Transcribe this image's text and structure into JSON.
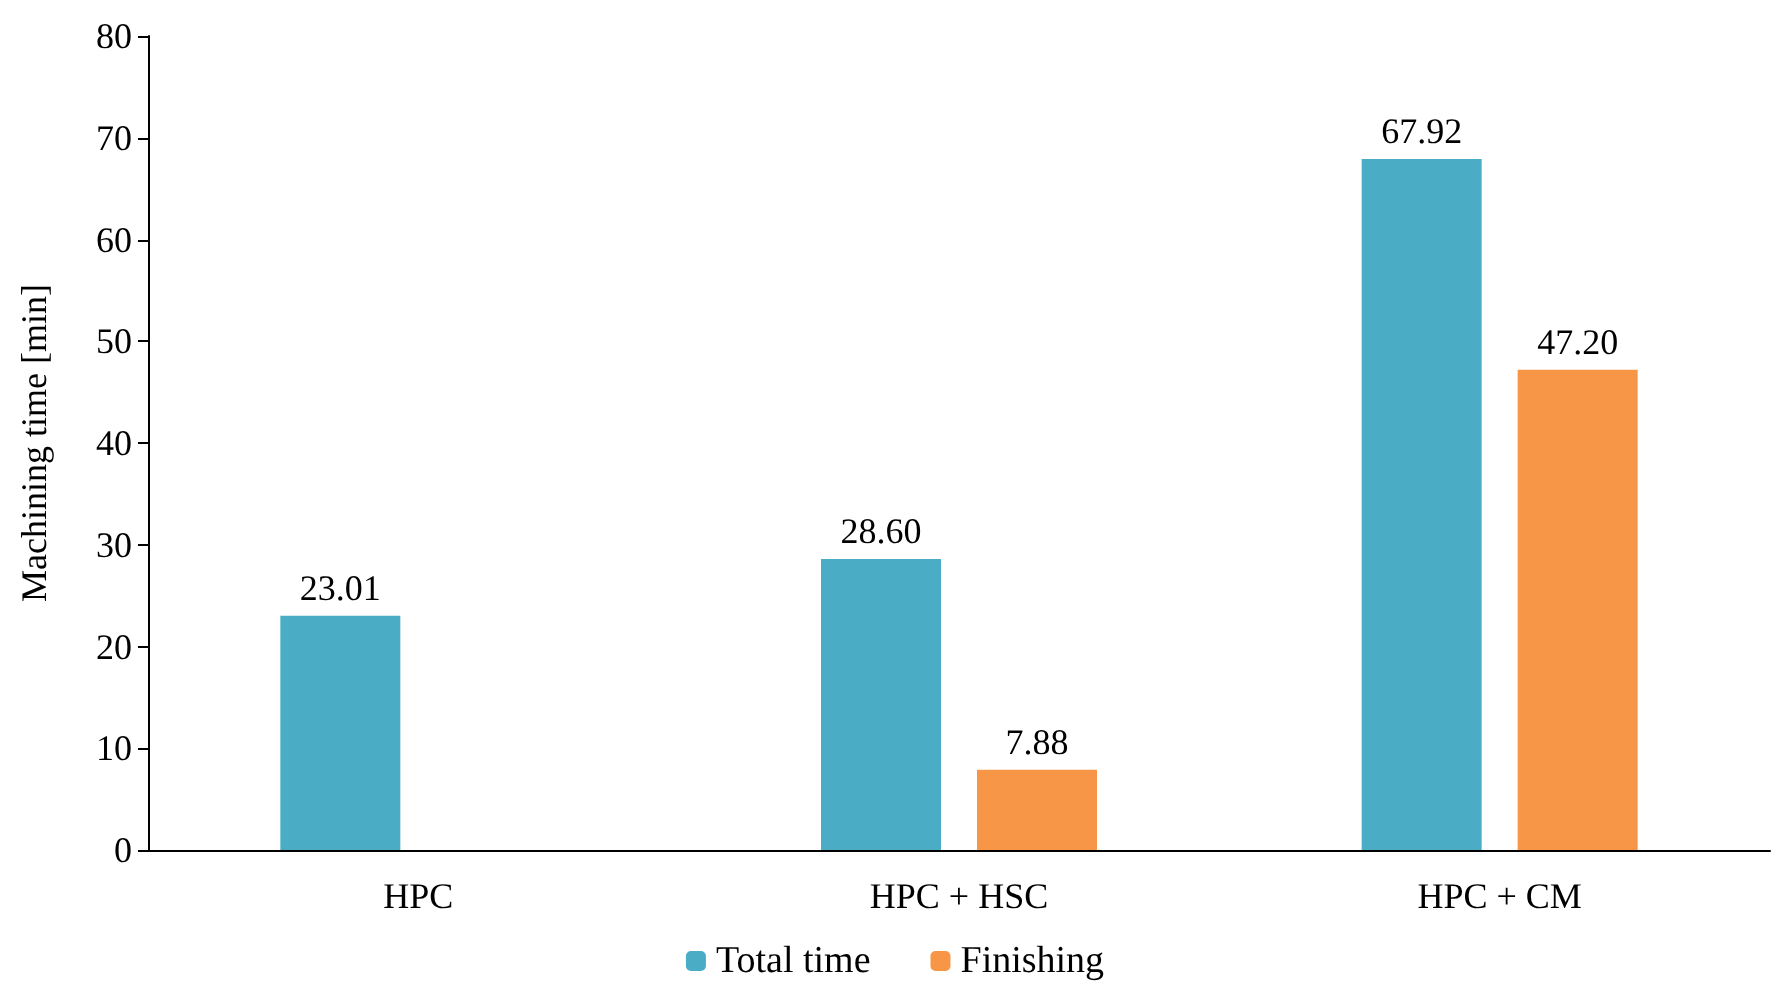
{
  "chart_data": {
    "type": "bar",
    "ylabel": "Machining time [min]",
    "categories": [
      "HPC",
      "HPC + HSC",
      "HPC + CM"
    ],
    "series": [
      {
        "name": "Total time",
        "color": "#4bacc6",
        "values": [
          23.01,
          28.6,
          67.92
        ]
      },
      {
        "name": "Finishing",
        "color": "#f79646",
        "values": [
          null,
          7.88,
          47.2
        ]
      }
    ],
    "value_labels": [
      [
        "23.01",
        "28.60",
        "67.92"
      ],
      [
        null,
        "7.88",
        "47.20"
      ]
    ],
    "ylim": [
      0,
      80
    ],
    "yticks": [
      0,
      10,
      20,
      30,
      40,
      50,
      60,
      70,
      80
    ],
    "grid": false,
    "legend": "bottom"
  }
}
